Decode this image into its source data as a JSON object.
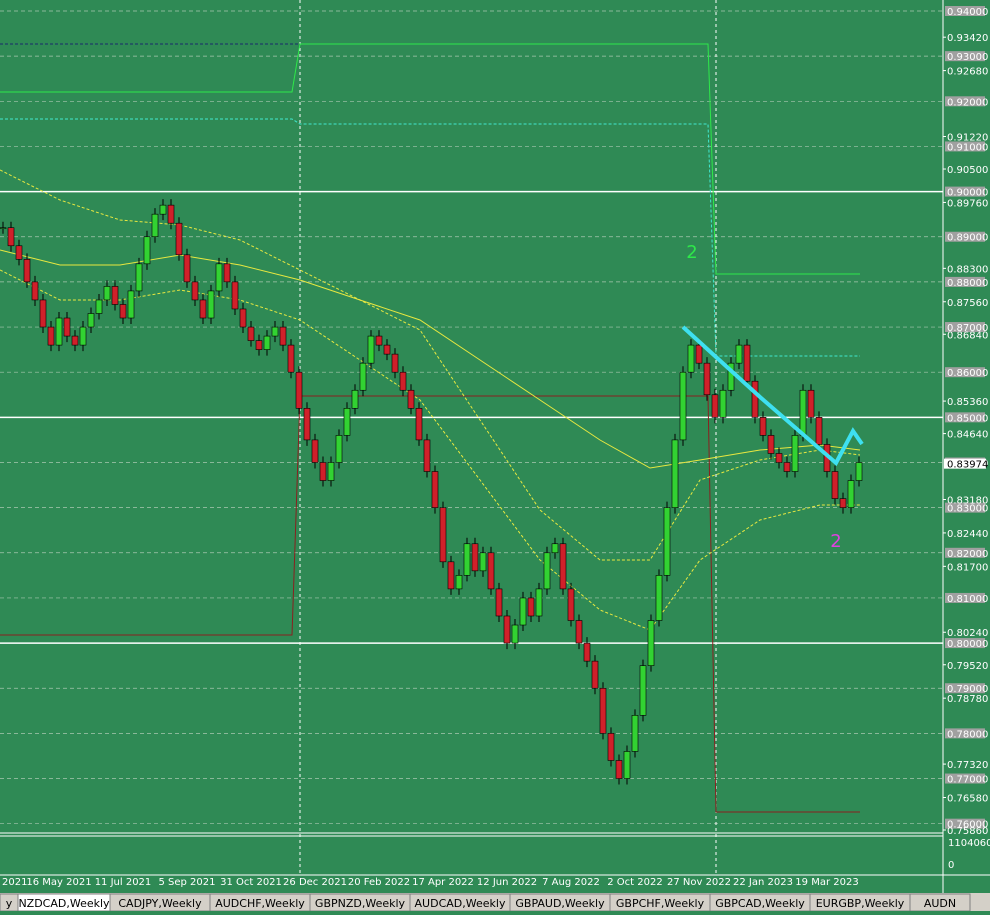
{
  "chart_data": {
    "type": "candlestick",
    "symbol_tab": "NZDCAD,Weekly",
    "closes": [
      0.892,
      0.888,
      0.885,
      0.88,
      0.876,
      0.87,
      0.866,
      0.872,
      0.868,
      0.866,
      0.87,
      0.873,
      0.876,
      0.879,
      0.875,
      0.872,
      0.878,
      0.884,
      0.89,
      0.895,
      0.897,
      0.893,
      0.886,
      0.88,
      0.876,
      0.872,
      0.878,
      0.884,
      0.88,
      0.874,
      0.87,
      0.867,
      0.865,
      0.868,
      0.87,
      0.866,
      0.86,
      0.852,
      0.845,
      0.84,
      0.836,
      0.84,
      0.846,
      0.852,
      0.856,
      0.862,
      0.868,
      0.866,
      0.864,
      0.86,
      0.856,
      0.852,
      0.845,
      0.838,
      0.83,
      0.818,
      0.812,
      0.815,
      0.822,
      0.816,
      0.82,
      0.812,
      0.806,
      0.8,
      0.804,
      0.81,
      0.806,
      0.812,
      0.82,
      0.822,
      0.812,
      0.805,
      0.8,
      0.796,
      0.79,
      0.78,
      0.774,
      0.77,
      0.776,
      0.784,
      0.795,
      0.805,
      0.815,
      0.83,
      0.845,
      0.86,
      0.866,
      0.862,
      0.855,
      0.85,
      0.856,
      0.862,
      0.866,
      0.858,
      0.85,
      0.846,
      0.842,
      0.84,
      0.838,
      0.846,
      0.856,
      0.85,
      0.844,
      0.838,
      0.832,
      0.83,
      0.836,
      0.84
    ],
    "ylim": [
      0.7586,
      0.94
    ],
    "boxed_ticks": [
      {
        "value": 0.94,
        "label": "0.94000"
      },
      {
        "value": 0.93,
        "label": "0.93000"
      },
      {
        "value": 0.92,
        "label": "0.92000"
      },
      {
        "value": 0.91,
        "label": "0.91000"
      },
      {
        "value": 0.9,
        "label": "0.90000"
      },
      {
        "value": 0.89,
        "label": "0.89000"
      },
      {
        "value": 0.88,
        "label": "0.88000"
      },
      {
        "value": 0.87,
        "label": "0.87000"
      },
      {
        "value": 0.86,
        "label": "0.86000"
      },
      {
        "value": 0.85,
        "label": "0.85000"
      },
      {
        "value": 0.84,
        "label": "0.84000"
      },
      {
        "value": 0.83,
        "label": "0.83000"
      },
      {
        "value": 0.82,
        "label": "0.82000"
      },
      {
        "value": 0.81,
        "label": "0.81000"
      },
      {
        "value": 0.8,
        "label": "0.80000"
      },
      {
        "value": 0.79,
        "label": "0.79000"
      },
      {
        "value": 0.78,
        "label": "0.78000"
      },
      {
        "value": 0.77,
        "label": "0.77000"
      },
      {
        "value": 0.76,
        "label": "0.76000"
      }
    ],
    "plain_ticks": [
      {
        "value": 0.9342,
        "label": "0.93420"
      },
      {
        "value": 0.9268,
        "label": "0.92680"
      },
      {
        "value": 0.9122,
        "label": "0.91220"
      },
      {
        "value": 0.905,
        "label": "0.90500"
      },
      {
        "value": 0.8976,
        "label": "0.89760"
      },
      {
        "value": 0.883,
        "label": "0.88300"
      },
      {
        "value": 0.8756,
        "label": "0.87560"
      },
      {
        "value": 0.8684,
        "label": "0.86840"
      },
      {
        "value": 0.8536,
        "label": "0.85360"
      },
      {
        "value": 0.8464,
        "label": "0.84640"
      },
      {
        "value": 0.8318,
        "label": "0.83180"
      },
      {
        "value": 0.8244,
        "label": "0.82440"
      },
      {
        "value": 0.817,
        "label": "0.81700"
      },
      {
        "value": 0.8024,
        "label": "0.80240"
      },
      {
        "value": 0.7952,
        "label": "0.79520"
      },
      {
        "value": 0.7878,
        "label": "0.78780"
      },
      {
        "value": 0.7732,
        "label": "0.77320"
      },
      {
        "value": 0.7658,
        "label": "0.76580"
      },
      {
        "value": 0.7586,
        "label": "0.75860"
      }
    ],
    "current_price": {
      "value": 0.83974,
      "label": "0.83974"
    },
    "levels": [
      0.9,
      0.85,
      0.8
    ],
    "dates": [
      "16 May 2021",
      "11 Jul 2021",
      "5 Sep 2021",
      "31 Oct 2021",
      "26 Dec 2021",
      "20 Feb 2022",
      "17 Apr 2022",
      "12 Jun 2022",
      "7 Aug 2022",
      "2 Oct 2022",
      "27 Nov 2022",
      "22 Jan 2023",
      "19 Mar 2023"
    ],
    "first_date_fragment": "2021",
    "volume_labels": [
      "1104060",
      "0"
    ],
    "wave_labels": [
      "2",
      "2"
    ]
  },
  "tabs": [
    "y",
    "NZDCAD,Weekly",
    "CADJPY,Weekly",
    "AUDCHF,Weekly",
    "GBPNZD,Weekly",
    "AUDCAD,Weekly",
    "GBPAUD,Weekly",
    "GBPCHF,Weekly",
    "GBPCAD,Weekly",
    "EURGBP,Weekly",
    "AUDN"
  ]
}
